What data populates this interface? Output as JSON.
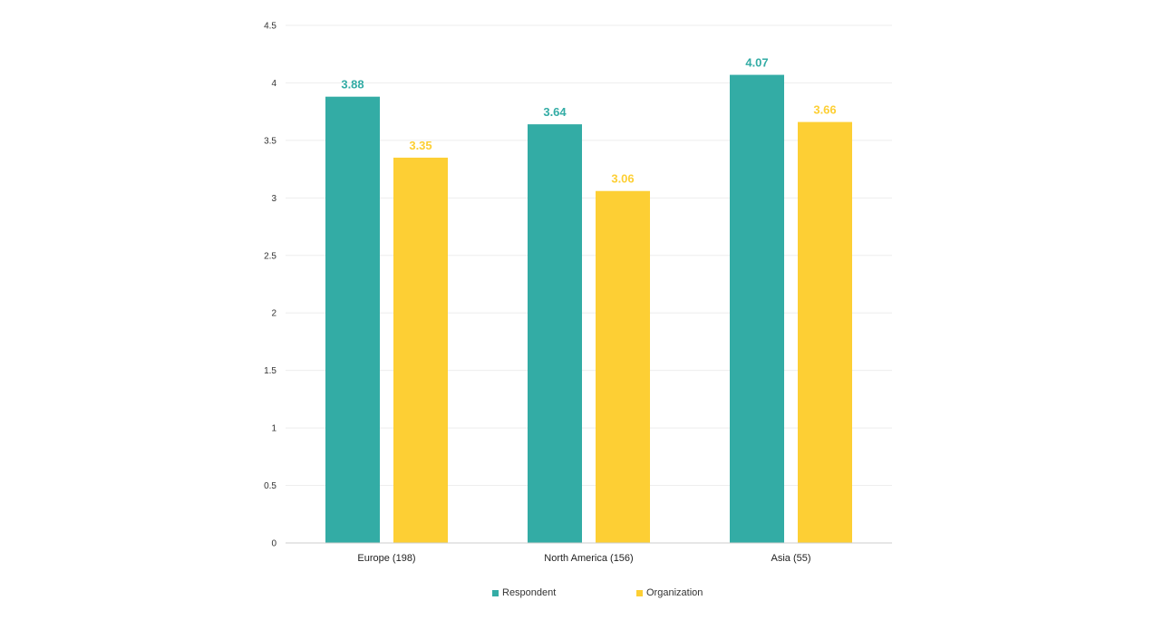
{
  "chart_data": {
    "type": "bar",
    "categories": [
      "Europe (198)",
      "North America (156)",
      "Asia (55)"
    ],
    "series": [
      {
        "name": "Respondent",
        "values": [
          3.88,
          3.64,
          4.07
        ],
        "color": "#33aca5"
      },
      {
        "name": "Organization",
        "values": [
          3.35,
          3.06,
          3.66
        ],
        "color": "#fdcf34"
      }
    ],
    "ylim": [
      0,
      4.5
    ],
    "yticks": [
      "0",
      "0.5",
      "1",
      "1.5",
      "2",
      "2.5",
      "3",
      "3.5",
      "4",
      "4.5"
    ],
    "value_labels": [
      [
        "3.88",
        "3.64",
        "4.07"
      ],
      [
        "3.35",
        "3.06",
        "3.66"
      ]
    ],
    "grid": true,
    "legend_position": "bottom",
    "title": "",
    "xlabel": "",
    "ylabel": ""
  }
}
